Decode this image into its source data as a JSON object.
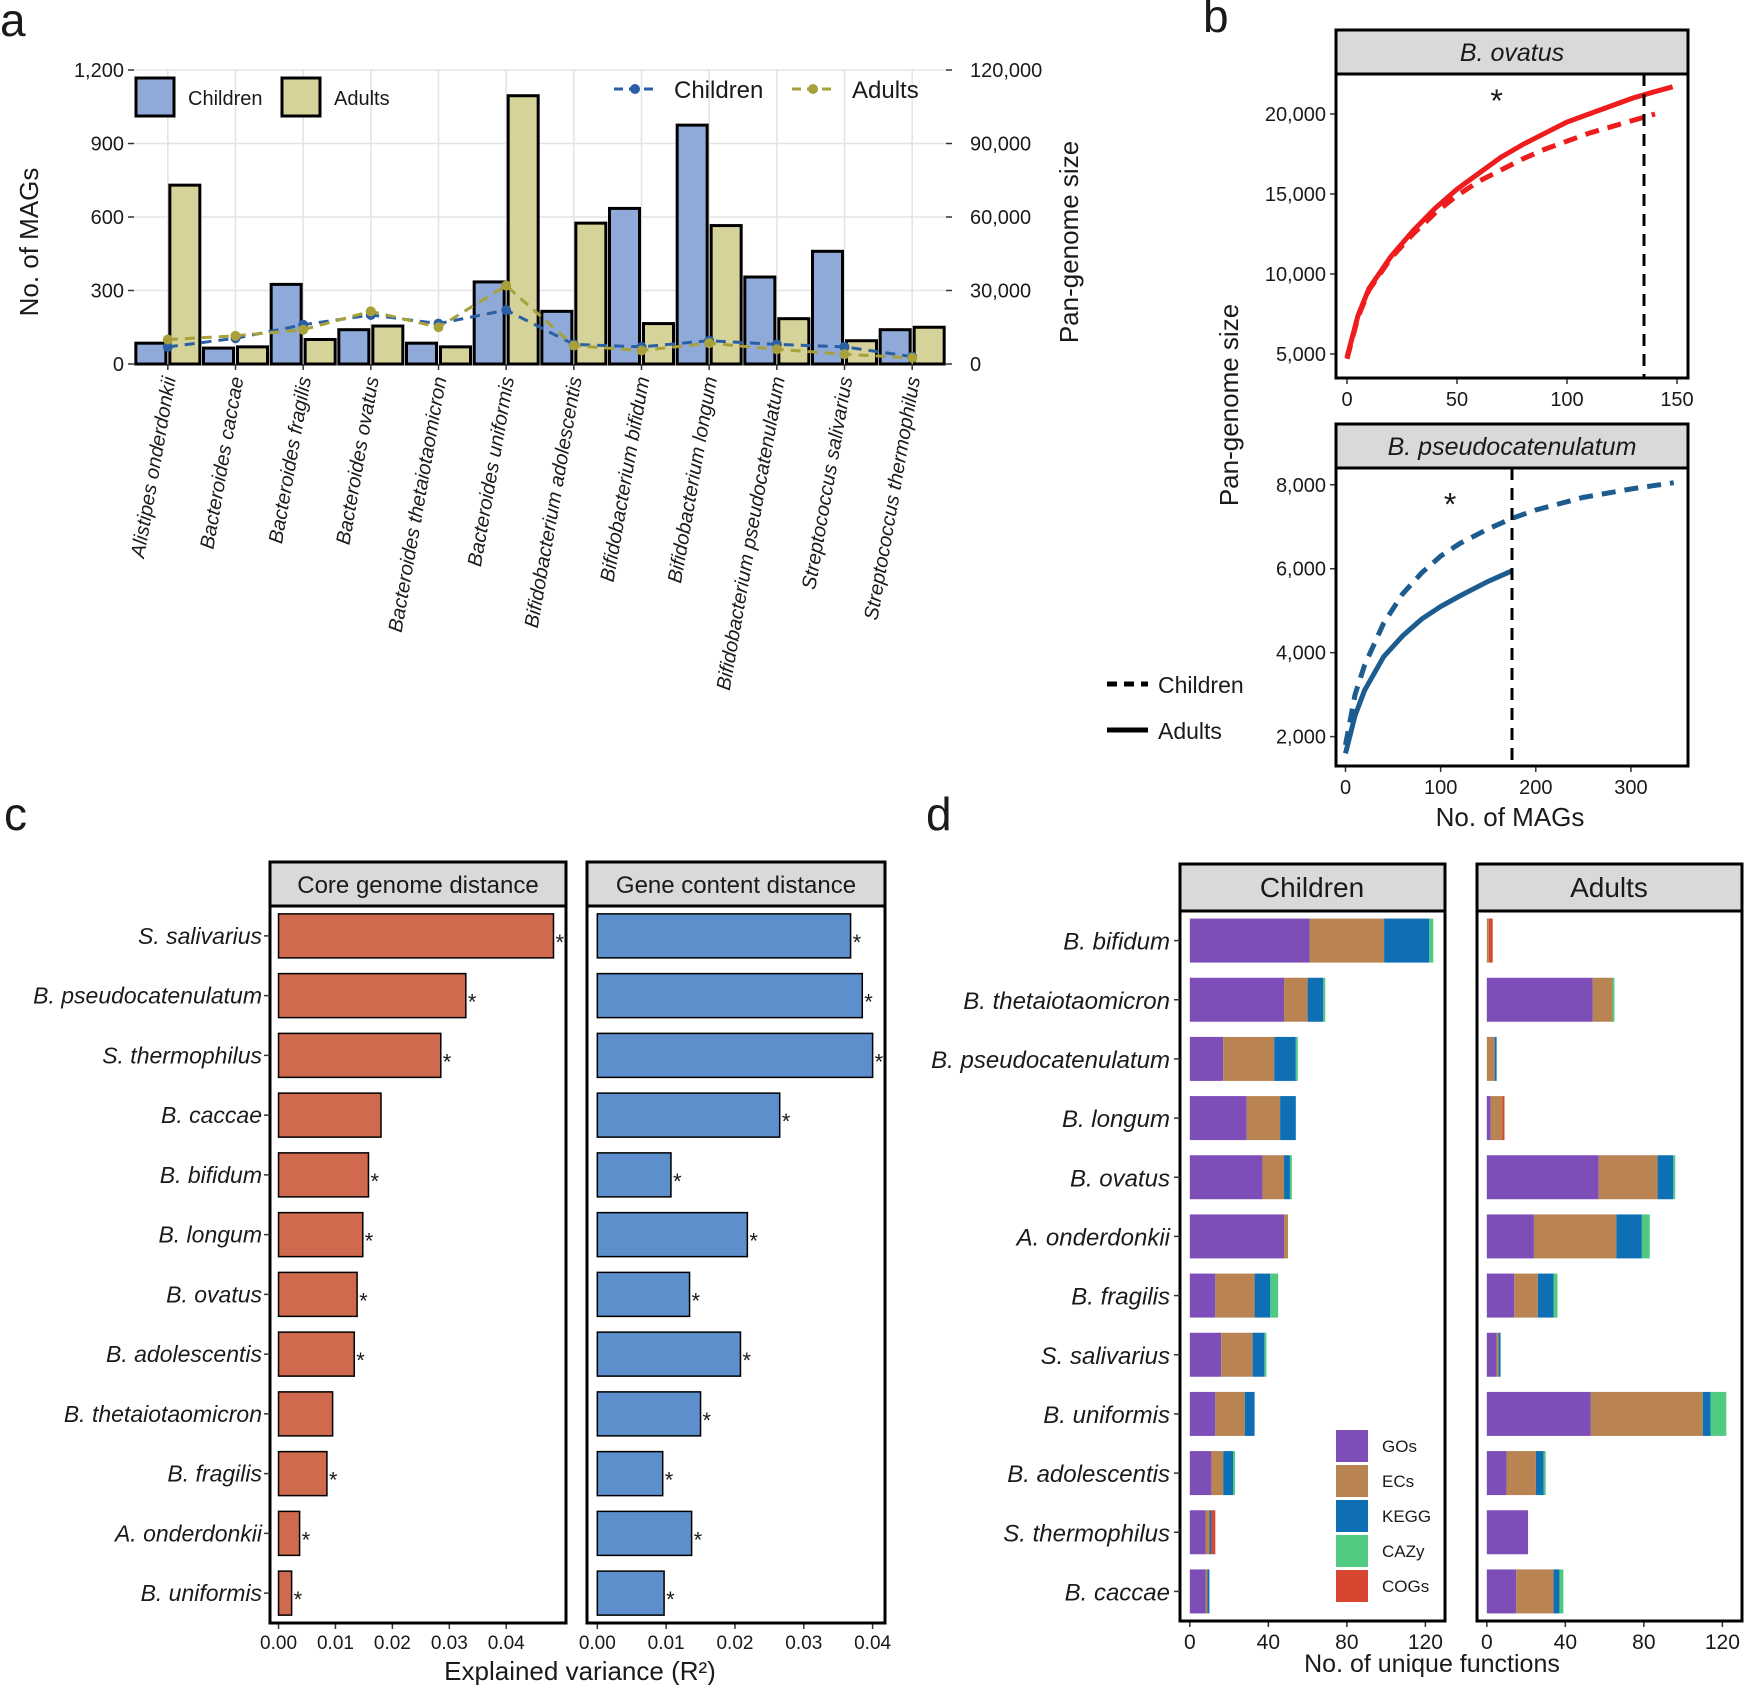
{
  "colors": {
    "children": "#8faad8",
    "adults": "#d5d29a",
    "children_line": "#2a5fa3",
    "adults_line": "#a8a03a",
    "ovatus_curve": "#ee1c1c",
    "pseudo_curve": "#1d5c8f",
    "core_bar": "#cf6a4e",
    "gene_bar": "#5c8fcb",
    "GOs": "#7d4eb8",
    "ECs": "#b98452",
    "KEGG": "#0f6fb5",
    "CAZy": "#4fca80",
    "COGs": "#d94630"
  },
  "panel_labels": {
    "a": "a",
    "b": "b",
    "c": "c",
    "d": "d"
  },
  "chart_data": [
    {
      "panel": "a",
      "type": "bar",
      "ylabel": "No. of MAGs",
      "y2label": "Pan-genome size",
      "ylim": [
        0,
        1200
      ],
      "y2lim": [
        0,
        120000
      ],
      "yticks": [
        "0",
        "300",
        "600",
        "900",
        "1,200"
      ],
      "y2ticks": [
        "0",
        "30,000",
        "60,000",
        "90,000",
        "120,000"
      ],
      "bar_legend": [
        "Children",
        "Adults"
      ],
      "line_legend": [
        "Children",
        "Adults"
      ],
      "categories": [
        "Alistipes onderdonkii",
        "Bacteroides caccae",
        "Bacteroides fragilis",
        "Bacteroides ovatus",
        "Bacteroides thetaiotaomicron",
        "Bacteroides uniformis",
        "Bifidobacterium adolescentis",
        "Bifidobacterium bifidum",
        "Bifidobacterium longum",
        "Bifidobacterium pseudocatenulatum",
        "Streptococcus salivarius",
        "Streptococcus thermophilus"
      ],
      "series": [
        {
          "name": "Children",
          "values": [
            85,
            65,
            325,
            140,
            85,
            335,
            215,
            635,
            975,
            355,
            460,
            140
          ]
        },
        {
          "name": "Adults",
          "values": [
            730,
            70,
            100,
            155,
            70,
            1095,
            575,
            165,
            565,
            185,
            95,
            150
          ]
        }
      ],
      "lines": [
        {
          "name": "Children",
          "values": [
            7000,
            10500,
            16000,
            20000,
            16500,
            22000,
            8000,
            7000,
            9500,
            8000,
            7000,
            3000
          ]
        },
        {
          "name": "Adults",
          "values": [
            10000,
            11500,
            14000,
            21500,
            15000,
            32000,
            7500,
            5500,
            8500,
            6000,
            4000,
            2500
          ]
        }
      ]
    },
    {
      "panel": "b",
      "type": "line",
      "ylabel": "Pan-genome size",
      "xlabel": "No. of MAGs",
      "legend": [
        "Children",
        "Adults"
      ],
      "facets": [
        {
          "title": "B. ovatus",
          "xlim": [
            -5,
            155
          ],
          "ylim": [
            3500,
            22500
          ],
          "xticks": [
            0,
            50,
            100,
            150
          ],
          "yticks": [
            5000,
            10000,
            15000,
            20000
          ],
          "ytick_labels": [
            "5,000",
            "10,000",
            "15,000",
            "20,000"
          ],
          "vline": 135,
          "star": "*",
          "star_at": [
            68,
            21000
          ],
          "children": {
            "x": [
              0,
              5,
              10,
              20,
              30,
              40,
              50,
              60,
              70,
              80,
              90,
              100,
              110,
              120,
              130,
              140
            ],
            "y": [
              4700,
              7300,
              9000,
              11000,
              12500,
              13800,
              14900,
              15800,
              16500,
              17200,
              17800,
              18300,
              18800,
              19200,
              19600,
              20000
            ]
          },
          "adults": {
            "x": [
              0,
              5,
              10,
              20,
              30,
              40,
              50,
              60,
              70,
              80,
              90,
              100,
              110,
              120,
              130,
              140,
              148
            ],
            "y": [
              4800,
              7400,
              9100,
              11100,
              12700,
              14100,
              15300,
              16300,
              17300,
              18100,
              18800,
              19500,
              20000,
              20500,
              21000,
              21400,
              21700
            ]
          }
        },
        {
          "title": "B. pseudocatenulatum",
          "xlim": [
            -10,
            360
          ],
          "ylim": [
            1300,
            8400
          ],
          "xticks": [
            0,
            100,
            200,
            300
          ],
          "yticks": [
            2000,
            4000,
            6000,
            8000
          ],
          "ytick_labels": [
            "2,000",
            "4,000",
            "6,000",
            "8,000"
          ],
          "vline": 175,
          "star": "*",
          "star_at": [
            110,
            7600
          ],
          "children": {
            "x": [
              0,
              10,
              20,
              40,
              60,
              80,
              100,
              120,
              150,
              175,
              200,
              250,
              300,
              345
            ],
            "y": [
              1800,
              3000,
              3700,
              4700,
              5400,
              5900,
              6300,
              6600,
              6950,
              7200,
              7400,
              7700,
              7900,
              8050
            ]
          },
          "adults": {
            "x": [
              0,
              10,
              20,
              40,
              60,
              80,
              100,
              120,
              150,
              175
            ],
            "y": [
              1600,
              2500,
              3100,
              3900,
              4400,
              4800,
              5100,
              5350,
              5700,
              5950
            ]
          }
        }
      ]
    },
    {
      "panel": "c",
      "type": "bar",
      "orientation": "horizontal",
      "xlabel": "Explained variance (R²)",
      "categories": [
        "S. salivarius",
        "B. pseudocatenulatum",
        "S. thermophilus",
        "B. caccae",
        "B. bifidum",
        "B. longum",
        "B. ovatus",
        "B. adolescentis",
        "B. thetaiotaomicron",
        "B. fragilis",
        "A. onderdonkii",
        "B. uniformis"
      ],
      "facets": [
        {
          "title": "Core genome distance",
          "xlim": [
            -0.0015,
            0.0505
          ],
          "xticks": [
            0,
            0.01,
            0.02,
            0.03,
            0.04
          ],
          "xtick_labels": [
            "0.00",
            "0.01",
            "0.02",
            "0.03",
            "0.04"
          ],
          "values": [
            0.0483,
            0.0329,
            0.0285,
            0.018,
            0.0158,
            0.0148,
            0.0138,
            0.0133,
            0.0095,
            0.0085,
            0.0037,
            0.0023
          ],
          "sig": [
            true,
            true,
            true,
            false,
            true,
            true,
            true,
            true,
            false,
            true,
            true,
            true
          ]
        },
        {
          "title": "Gene content distance",
          "xlim": [
            -0.0015,
            0.0418
          ],
          "xticks": [
            0,
            0.01,
            0.02,
            0.03,
            0.04
          ],
          "xtick_labels": [
            "0.00",
            "0.01",
            "0.02",
            "0.03",
            "0.04"
          ],
          "values": [
            0.0368,
            0.0385,
            0.04,
            0.0265,
            0.0107,
            0.0218,
            0.0134,
            0.0208,
            0.015,
            0.0095,
            0.0137,
            0.0097
          ],
          "sig": [
            true,
            true,
            true,
            true,
            true,
            true,
            true,
            true,
            true,
            true,
            true,
            true
          ]
        }
      ]
    },
    {
      "panel": "d",
      "type": "bar",
      "orientation": "horizontal",
      "stacked": true,
      "xlabel": "No. of unique functions",
      "legend": [
        "GOs",
        "ECs",
        "KEGG",
        "CAZy",
        "COGs"
      ],
      "categories": [
        "B. bifidum",
        "B. thetaiotaomicron",
        "B. pseudocatenulatum",
        "B. longum",
        "B. ovatus",
        "A. onderdonkii",
        "B. fragilis",
        "S. salivarius",
        "B. uniformis",
        "B. adolescentis",
        "S. thermophilus",
        "B. caccae"
      ],
      "facets": [
        {
          "title": "Children",
          "xlim": [
            -5,
            130
          ],
          "xticks": [
            0,
            40,
            80,
            120
          ],
          "stacks": [
            [
              61,
              38,
              23,
              2,
              0
            ],
            [
              48,
              12,
              8,
              1,
              0
            ],
            [
              17,
              26,
              11,
              1,
              0
            ],
            [
              29,
              17,
              8,
              0,
              0
            ],
            [
              37,
              11,
              3,
              1,
              0
            ],
            [
              48,
              2,
              0,
              0,
              0
            ],
            [
              13,
              20,
              8,
              4,
              0
            ],
            [
              16,
              16,
              6,
              1,
              0
            ],
            [
              13,
              15,
              5,
              0,
              0
            ],
            [
              11,
              6,
              5,
              1,
              0
            ],
            [
              8,
              2,
              1,
              0,
              2
            ],
            [
              8,
              1,
              1,
              0,
              0
            ]
          ]
        },
        {
          "title": "Adults",
          "xlim": [
            -5,
            130
          ],
          "xticks": [
            0,
            40,
            80,
            120
          ],
          "stacks": [
            [
              0,
              1,
              0,
              0,
              2
            ],
            [
              54,
              10,
              0,
              1,
              0
            ],
            [
              0,
              4,
              1,
              0,
              0
            ],
            [
              2,
              6,
              0,
              0,
              1
            ],
            [
              57,
              30,
              8,
              1,
              0
            ],
            [
              24,
              42,
              13,
              4,
              0
            ],
            [
              14,
              12,
              8,
              2,
              0
            ],
            [
              5,
              1,
              1,
              0,
              0
            ],
            [
              53,
              57,
              4,
              8,
              0
            ],
            [
              10,
              15,
              4,
              1,
              0
            ],
            [
              21,
              0,
              0,
              0,
              0
            ],
            [
              15,
              19,
              3,
              2,
              0
            ]
          ]
        }
      ]
    }
  ]
}
